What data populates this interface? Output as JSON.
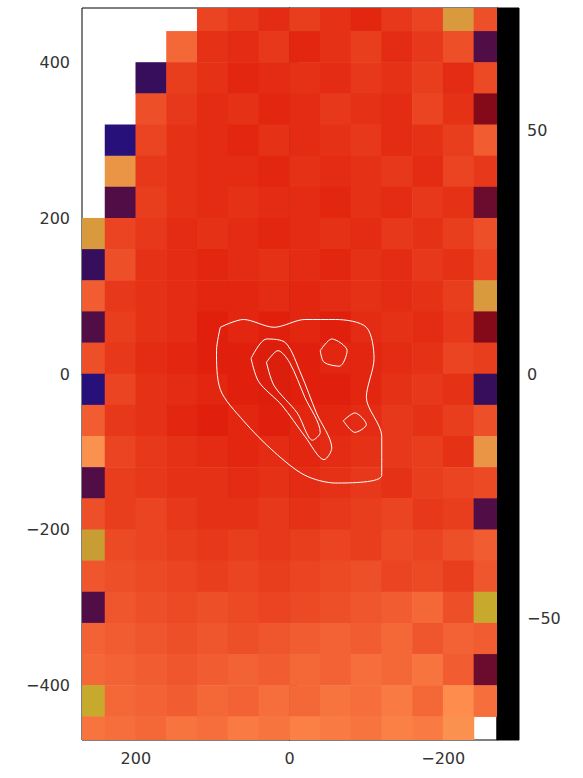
{
  "chart_data": {
    "type": "heatmap",
    "xlim": [
      270,
      -270
    ],
    "ylim": [
      -470,
      470
    ],
    "xticks": [
      200,
      0,
      {
        "value": -200,
        "label": "−200"
      }
    ],
    "yticks": [
      {
        "value": -400,
        "label": "−400"
      },
      {
        "value": -200,
        "label": "−200"
      },
      0,
      200,
      400
    ],
    "cells": {
      "x": [
        260,
        220,
        180,
        140,
        100,
        60,
        20,
        -20,
        -60,
        -100,
        -140,
        -180,
        -220,
        -260
      ],
      "y": [
        460,
        420,
        380,
        340,
        300,
        260,
        220,
        180,
        140,
        100,
        60,
        20,
        -20,
        -60,
        -100,
        -140,
        -180,
        -220,
        -260,
        -300,
        -340,
        -380,
        -420,
        -460
      ],
      "values": [
        [
          null,
          null,
          null,
          null,
          6,
          4,
          2,
          5,
          3,
          1,
          4,
          6,
          30,
          8
        ],
        [
          null,
          null,
          null,
          12,
          3,
          2,
          4,
          1,
          3,
          5,
          2,
          4,
          8,
          -30
        ],
        [
          null,
          null,
          -35,
          5,
          3,
          1,
          2,
          3,
          2,
          4,
          3,
          5,
          2,
          7
        ],
        [
          null,
          null,
          8,
          4,
          2,
          3,
          1,
          2,
          4,
          3,
          2,
          6,
          3,
          -20
        ],
        [
          null,
          -40,
          6,
          3,
          2,
          1,
          3,
          2,
          3,
          4,
          2,
          3,
          5,
          10
        ],
        [
          null,
          25,
          4,
          3,
          2,
          2,
          1,
          3,
          2,
          3,
          4,
          2,
          6,
          4
        ],
        [
          null,
          -30,
          5,
          3,
          2,
          3,
          2,
          2,
          1,
          3,
          2,
          4,
          3,
          -25
        ],
        [
          30,
          6,
          4,
          2,
          3,
          2,
          1,
          2,
          3,
          2,
          4,
          3,
          5,
          8
        ],
        [
          -35,
          8,
          3,
          2,
          1,
          2,
          3,
          2,
          1,
          3,
          2,
          4,
          3,
          6
        ],
        [
          10,
          4,
          3,
          2,
          1,
          1,
          2,
          1,
          2,
          3,
          2,
          3,
          5,
          30
        ],
        [
          -30,
          5,
          3,
          2,
          0,
          1,
          0,
          1,
          0,
          2,
          3,
          2,
          4,
          -20
        ],
        [
          8,
          4,
          2,
          1,
          0,
          0,
          -1,
          0,
          1,
          1,
          2,
          3,
          6,
          5
        ],
        [
          -40,
          6,
          3,
          2,
          1,
          0,
          -1,
          0,
          0,
          1,
          3,
          4,
          3,
          -35
        ],
        [
          10,
          4,
          3,
          1,
          0,
          1,
          0,
          1,
          1,
          2,
          4,
          3,
          5,
          8
        ],
        [
          20,
          6,
          4,
          3,
          2,
          1,
          2,
          1,
          2,
          3,
          4,
          5,
          3,
          25
        ],
        [
          -30,
          5,
          4,
          3,
          3,
          2,
          3,
          2,
          3,
          4,
          3,
          5,
          6,
          7
        ],
        [
          8,
          5,
          6,
          4,
          3,
          3,
          4,
          3,
          4,
          5,
          6,
          4,
          5,
          -30
        ],
        [
          35,
          7,
          6,
          5,
          4,
          5,
          4,
          5,
          6,
          5,
          7,
          6,
          8,
          10
        ],
        [
          9,
          8,
          7,
          6,
          5,
          6,
          5,
          6,
          7,
          8,
          6,
          7,
          5,
          9
        ],
        [
          -30,
          9,
          8,
          7,
          8,
          7,
          6,
          7,
          8,
          9,
          10,
          12,
          8,
          40
        ],
        [
          11,
          10,
          9,
          8,
          9,
          8,
          9,
          10,
          11,
          10,
          12,
          9,
          11,
          10
        ],
        [
          12,
          11,
          10,
          9,
          10,
          11,
          10,
          12,
          11,
          13,
          12,
          14,
          10,
          -25
        ],
        [
          40,
          12,
          11,
          10,
          12,
          11,
          13,
          12,
          14,
          13,
          15,
          12,
          18,
          13
        ],
        [
          14,
          13,
          12,
          14,
          13,
          15,
          14,
          16,
          15,
          14,
          16,
          15,
          20,
          null
        ]
      ]
    },
    "colorbar": {
      "range": [
        -75,
        75
      ],
      "ticks": [
        {
          "value": -50,
          "label": "−50"
        },
        0,
        50
      ]
    },
    "contours": [
      {
        "x": [
          90,
          60,
          20,
          -20,
          -60,
          -100,
          -110,
          -100,
          -120,
          -120,
          -60,
          -20,
          20,
          60,
          90,
          95,
          90
        ],
        "y": [
          60,
          70,
          60,
          70,
          70,
          60,
          20,
          -30,
          -80,
          -130,
          -140,
          -130,
          -100,
          -60,
          -20,
          30,
          60
        ]
      },
      {
        "x": [
          50,
          30,
          5,
          -15,
          -35,
          -55,
          -45,
          -20,
          10,
          40,
          50
        ],
        "y": [
          20,
          45,
          40,
          0,
          -50,
          -95,
          -110,
          -80,
          -40,
          -10,
          20
        ]
      },
      {
        "x": [
          30,
          15,
          0,
          -20,
          -40,
          -30,
          -10,
          20,
          30
        ],
        "y": [
          15,
          30,
          15,
          -30,
          -75,
          -85,
          -50,
          -15,
          15
        ]
      },
      {
        "x": [
          -40,
          -55,
          -75,
          -65,
          -45,
          -40
        ],
        "y": [
          30,
          45,
          30,
          10,
          15,
          30
        ]
      },
      {
        "x": [
          -70,
          -85,
          -100,
          -85,
          -70
        ],
        "y": [
          -60,
          -50,
          -65,
          -75,
          -60
        ]
      }
    ]
  }
}
